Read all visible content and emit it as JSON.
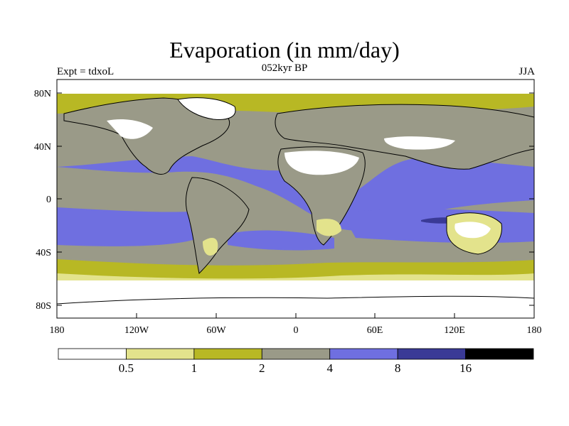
{
  "title": "Evaporation (in mm/day)",
  "subtitle": "052kyr BP",
  "experiment_label": "Expt = tdxoL",
  "season_label": "JJA",
  "lat_ticks": [
    "80N",
    "40N",
    "0",
    "40S",
    "80S"
  ],
  "lon_ticks": [
    "180",
    "120W",
    "60W",
    "0",
    "60E",
    "120E",
    "180"
  ],
  "colorbar": {
    "colors": [
      "#ffffff",
      "#e3e38c",
      "#b8b824",
      "#9a9a88",
      "#6f6fe0",
      "#3a3a96",
      "#000000"
    ],
    "labels": [
      "0.5",
      "1",
      "2",
      "4",
      "8",
      "16"
    ]
  }
}
